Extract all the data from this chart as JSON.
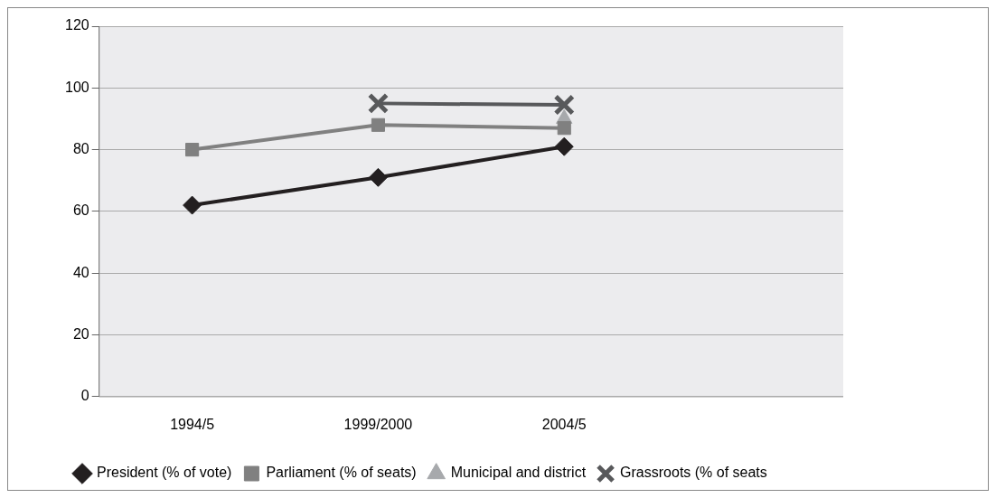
{
  "chart_data": {
    "type": "line",
    "categories": [
      "1994/5",
      "1999/2000",
      "2004/5",
      null
    ],
    "series": [
      {
        "name": "President (% of vote)",
        "color": "#231f20",
        "marker": "diamond",
        "values": [
          62,
          71,
          81,
          null
        ]
      },
      {
        "name": "Parliament (% of seats)",
        "color": "#808080",
        "marker": "square",
        "values": [
          80,
          88,
          87,
          null
        ]
      },
      {
        "name": "Municipal and district",
        "color": "#a7a9ac",
        "marker": "triangle",
        "values": [
          null,
          null,
          90,
          null
        ]
      },
      {
        "name": "Grassroots (% of seats",
        "color": "#58595b",
        "marker": "cross",
        "values": [
          null,
          95,
          94.5,
          null
        ]
      }
    ],
    "ylim": [
      0,
      120
    ],
    "yticks": [
      0,
      20,
      40,
      60,
      80,
      100,
      120
    ],
    "grid": "y",
    "legend": "bottom"
  }
}
